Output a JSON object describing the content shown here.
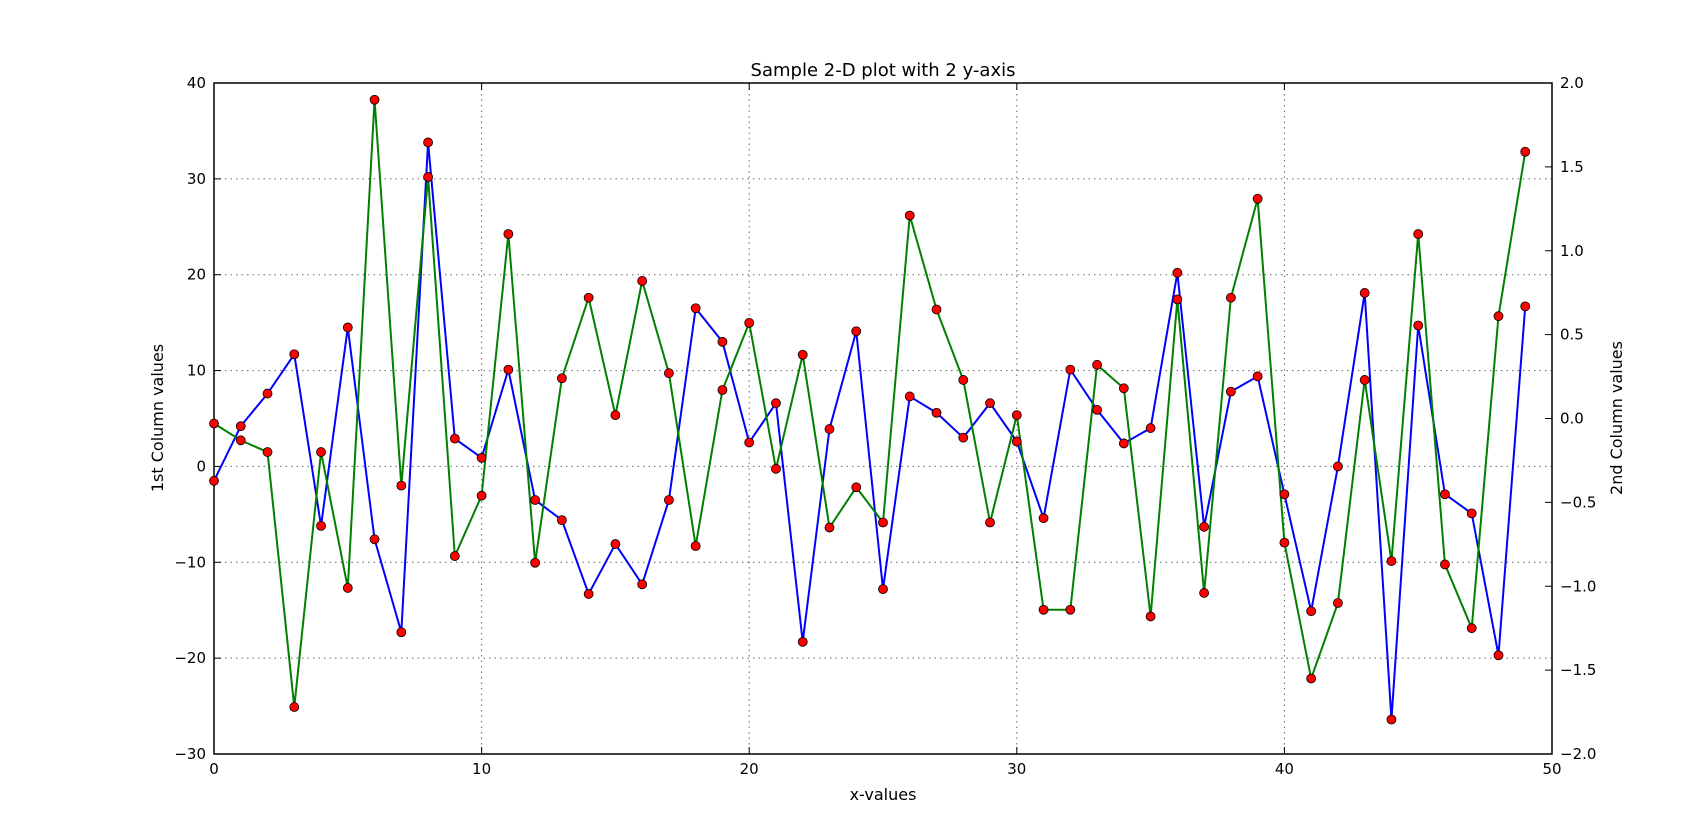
{
  "chart_data": {
    "type": "line",
    "title": "Sample 2-D plot with 2 y-axis",
    "xlabel": "x-values",
    "ylabel_left": "1st Column values",
    "ylabel_right": "2nd Column values",
    "xlim": [
      0,
      50
    ],
    "ylim_left": [
      -30,
      40
    ],
    "ylim_right": [
      -2.0,
      2.0
    ],
    "x_ticks": [
      0,
      10,
      20,
      30,
      40,
      50
    ],
    "y_left_ticks": [
      -30,
      -20,
      -10,
      0,
      10,
      20,
      30,
      40
    ],
    "y_right_ticks": [
      -2.0,
      -1.5,
      -1.0,
      -0.5,
      0.0,
      0.5,
      1.0,
      1.5,
      2.0
    ],
    "grid": true,
    "x": [
      0,
      1,
      2,
      3,
      4,
      5,
      6,
      7,
      8,
      9,
      10,
      11,
      12,
      13,
      14,
      15,
      16,
      17,
      18,
      19,
      20,
      21,
      22,
      23,
      24,
      25,
      26,
      27,
      28,
      29,
      30,
      31,
      32,
      33,
      34,
      35,
      36,
      37,
      38,
      39,
      40,
      41,
      42,
      43,
      44,
      45,
      46,
      47,
      48,
      49
    ],
    "series": [
      {
        "axis": "left",
        "color": "#0000ff",
        "marker_color": "#ff0000",
        "values": [
          -1.5,
          4.2,
          7.6,
          11.7,
          -6.2,
          14.5,
          -7.6,
          -17.3,
          33.8,
          2.9,
          0.9,
          10.1,
          -3.5,
          -5.6,
          -13.3,
          -8.1,
          -12.3,
          -3.5,
          16.5,
          13.0,
          2.5,
          6.6,
          -18.3,
          3.9,
          14.1,
          -12.8,
          7.3,
          5.6,
          3.0,
          6.6,
          2.6,
          -5.4,
          10.1,
          5.9,
          2.4,
          4.0,
          20.2,
          -6.3,
          7.8,
          9.4,
          -2.9,
          -15.1,
          0.0,
          18.1,
          -26.4,
          14.7,
          -2.9,
          -4.9,
          -19.7,
          16.7
        ]
      },
      {
        "axis": "right",
        "color": "#008000",
        "marker_color": "#ff0000",
        "values": [
          -0.03,
          -0.13,
          -0.2,
          -1.72,
          -0.2,
          -1.01,
          1.9,
          -0.4,
          1.44,
          -0.82,
          -0.46,
          1.1,
          -0.86,
          0.24,
          0.72,
          0.02,
          0.82,
          0.27,
          -0.76,
          0.17,
          0.57,
          -0.3,
          0.38,
          -0.65,
          -0.41,
          -0.62,
          1.21,
          0.65,
          0.23,
          -0.62,
          0.02,
          -1.14,
          -1.14,
          0.32,
          0.18,
          -1.18,
          0.71,
          -1.04,
          0.72,
          1.31,
          -0.74,
          -1.55,
          -1.1,
          0.23,
          -0.85,
          1.1,
          -0.87,
          -1.25,
          0.61,
          1.59
        ]
      }
    ]
  }
}
